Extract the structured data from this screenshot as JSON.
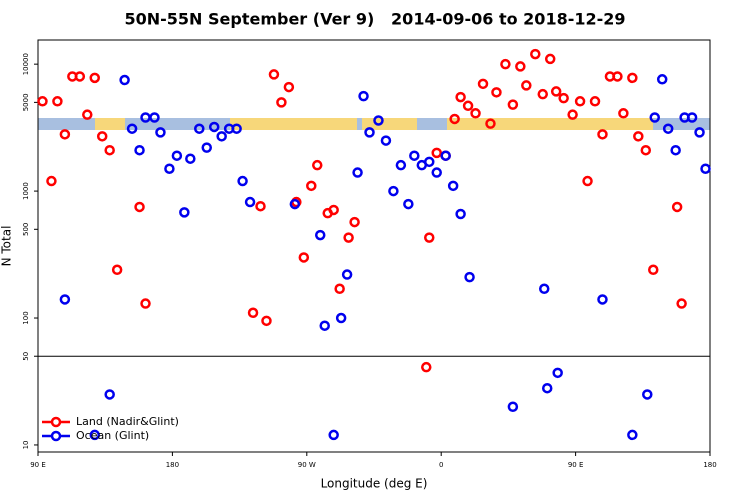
{
  "chart_data": {
    "type": "scatter",
    "title": "50N-55N September (Ver 9)   2014-09-06 to 2018-12-29",
    "x_label": "Longitude (deg E)",
    "y_label": "N Total",
    "xlim": [
      90,
      540
    ],
    "xticks": [
      {
        "value": 90,
        "label": "90 E"
      },
      {
        "value": 180,
        "label": "180"
      },
      {
        "value": 270,
        "label": "90 W"
      },
      {
        "value": 360,
        "label": "0"
      },
      {
        "value": 450,
        "label": "90 E"
      },
      {
        "value": 540,
        "label": "180"
      }
    ],
    "ylim": [
      8.8,
      15500
    ],
    "y_log": true,
    "yticks": [
      10,
      50,
      100,
      500,
      1000,
      5000,
      10000
    ],
    "y_break": 50,
    "legend": "bottom-left",
    "series": [
      {
        "name": "Land (Nadir&Glint)",
        "color": "#ff0000",
        "x": [
          93,
          99,
          103,
          108,
          113,
          118,
          123,
          128,
          133,
          138,
          143,
          158,
          162,
          234,
          239,
          243,
          248,
          253,
          258,
          263,
          268,
          273,
          277,
          284,
          288,
          292,
          298,
          302,
          350,
          352,
          357,
          363,
          369,
          373,
          378,
          383,
          388,
          393,
          397,
          403,
          408,
          413,
          417,
          423,
          428,
          433,
          437,
          442,
          448,
          453,
          458,
          463,
          468,
          473,
          478,
          482,
          488,
          492,
          497,
          502,
          518,
          521
        ],
        "values": [
          5100,
          1200,
          5100,
          2800,
          8000,
          8000,
          4000,
          7800,
          2700,
          2100,
          240,
          750,
          130,
          110,
          760,
          95,
          8300,
          5000,
          6600,
          820,
          300,
          1100,
          1600,
          670,
          710,
          170,
          430,
          570,
          41,
          430,
          2000,
          1900,
          3700,
          5500,
          4700,
          4100,
          7000,
          3400,
          6000,
          10000,
          4800,
          9600,
          6800,
          12000,
          5800,
          11000,
          6100,
          5400,
          4000,
          5100,
          1200,
          5100,
          2800,
          8000,
          8000,
          4100,
          7800,
          2700,
          2100,
          240,
          750,
          130
        ]
      },
      {
        "name": "Ocean (Glint)",
        "color": "#0000ee",
        "x": [
          108,
          128,
          138,
          148,
          153,
          158,
          162,
          168,
          172,
          178,
          183,
          188,
          192,
          198,
          203,
          208,
          213,
          218,
          223,
          227,
          232,
          262,
          279,
          282,
          288,
          293,
          297,
          304,
          308,
          312,
          318,
          323,
          328,
          333,
          338,
          342,
          347,
          352,
          357,
          363,
          368,
          373,
          379,
          408,
          429,
          431,
          438,
          468,
          488,
          498,
          503,
          508,
          512,
          517,
          523,
          528,
          533,
          537
        ],
        "values": [
          140,
          12,
          25,
          7500,
          3100,
          2100,
          3800,
          3800,
          2900,
          1500,
          1900,
          680,
          1800,
          3100,
          2200,
          3200,
          2700,
          3100,
          3100,
          1200,
          820,
          790,
          450,
          87,
          12,
          100,
          220,
          1400,
          5600,
          2900,
          3600,
          2500,
          1000,
          1600,
          790,
          1900,
          1600,
          1700,
          1400,
          1900,
          1100,
          660,
          210,
          20,
          170,
          28,
          37,
          140,
          12,
          25,
          3800,
          7600,
          3100,
          2100,
          3800,
          3800,
          2900,
          1500
        ]
      }
    ]
  }
}
